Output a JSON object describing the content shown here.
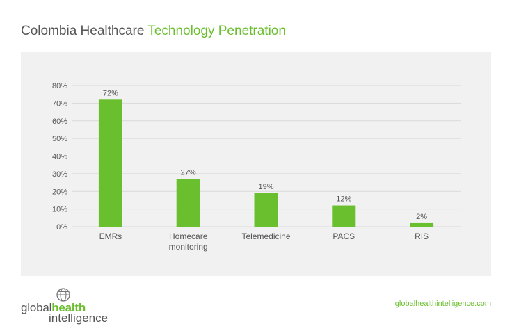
{
  "title": {
    "part1": "Colombia Healthcare",
    "part2": "Technology Penetration"
  },
  "colors": {
    "bar": "#6abf2e",
    "accent": "#6abf2e",
    "panel": "#f1f1f1",
    "grid": "#d9d9d9",
    "text": "#555555"
  },
  "logo": {
    "part1": "global",
    "part2": "health",
    "part3": "intelligence",
    "icon": "globe-icon"
  },
  "website": "globalhealthintelligence.com",
  "chart_data": {
    "type": "bar",
    "title": "Colombia Healthcare Technology Penetration",
    "xlabel": "",
    "ylabel": "",
    "categories": [
      [
        "EMRs"
      ],
      [
        "Homecare",
        "monitoring"
      ],
      [
        "Telemedicine"
      ],
      [
        "PACS"
      ],
      [
        "RIS"
      ]
    ],
    "values": [
      72,
      27,
      19,
      12,
      2
    ],
    "data_labels": [
      "72%",
      "27%",
      "19%",
      "12%",
      "2%"
    ],
    "yticks": [
      0,
      10,
      20,
      30,
      40,
      50,
      60,
      70,
      80
    ],
    "ytick_labels": [
      "0%",
      "10%",
      "20%",
      "30%",
      "40%",
      "50%",
      "60%",
      "70%",
      "80%"
    ],
    "ylim": [
      0,
      80
    ],
    "grid": true,
    "legend": "none"
  }
}
